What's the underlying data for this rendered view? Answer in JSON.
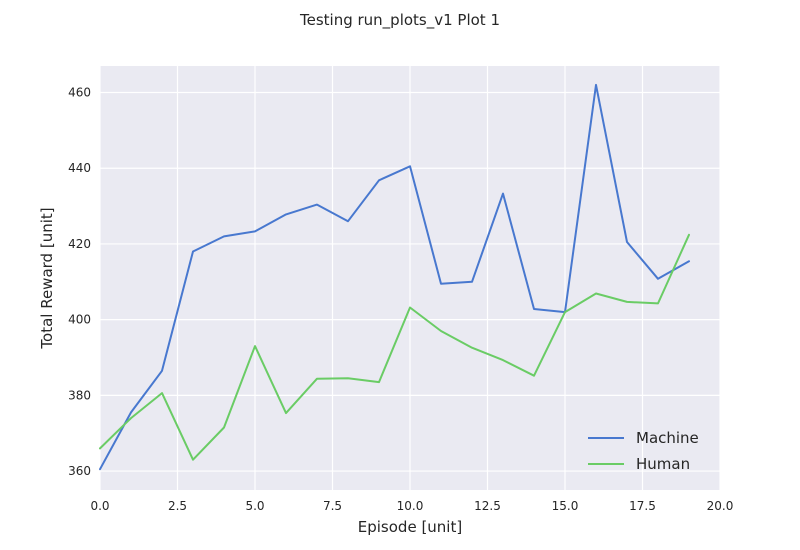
{
  "chart_data": {
    "type": "line",
    "title": "Testing run_plots_v1 Plot 1",
    "xlabel": "Episode [unit]",
    "ylabel": "Total Reward [unit]",
    "xlim": [
      0,
      20
    ],
    "ylim": [
      355,
      467
    ],
    "xticks": [
      "0.0",
      "2.5",
      "5.0",
      "7.5",
      "10.0",
      "12.5",
      "15.0",
      "17.5",
      "20.0"
    ],
    "yticks": [
      "360",
      "380",
      "400",
      "420",
      "440",
      "460"
    ],
    "grid": true,
    "legend_position": "lower-right",
    "x": [
      0,
      1,
      2,
      3,
      4,
      5,
      6,
      7,
      8,
      9,
      10,
      11,
      12,
      13,
      14,
      15,
      16,
      17,
      18,
      19
    ],
    "series": [
      {
        "name": "Machine",
        "color": "#4878cf",
        "values": [
          360.5,
          375.5,
          386.5,
          418,
          422,
          423.3,
          427.8,
          430.4,
          426,
          436.8,
          440.5,
          409.5,
          410,
          433.3,
          402.8,
          402,
          462,
          420.5,
          410.8,
          415.4
        ]
      },
      {
        "name": "Human",
        "color": "#6acc65",
        "values": [
          366,
          374,
          380.6,
          363,
          371.5,
          393,
          375.3,
          384.4,
          384.5,
          383.5,
          403.2,
          397,
          392.6,
          389.3,
          385.2,
          402,
          406.9,
          404.7,
          404.3,
          422.4
        ]
      }
    ]
  },
  "colors": {
    "plot_background": "#eaeaf2",
    "grid": "#ffffff"
  }
}
